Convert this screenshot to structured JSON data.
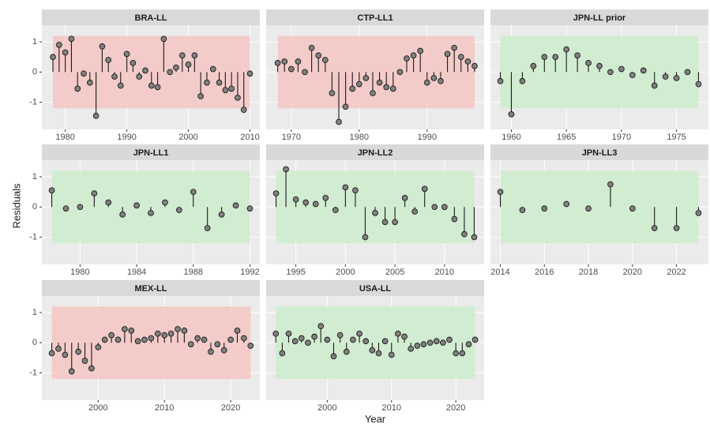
{
  "axis_titles": {
    "x": "Year",
    "y": "Residuals"
  },
  "chart_data": [
    {
      "type": "stem",
      "title": "BRA-LL",
      "band_color": "#f4c6c3",
      "color": "#808080",
      "x": [
        1978,
        1979,
        1980,
        1981,
        1982,
        1983,
        1984,
        1985,
        1986,
        1987,
        1988,
        1989,
        1990,
        1991,
        1992,
        1993,
        1994,
        1995,
        1996,
        1997,
        1998,
        1999,
        2000,
        2001,
        2002,
        2003,
        2004,
        2005,
        2006,
        2007,
        2008,
        2009,
        2010
      ],
      "values": [
        0.5,
        0.9,
        0.65,
        1.1,
        -0.55,
        -0.05,
        -0.35,
        -1.45,
        0.85,
        0.4,
        -0.15,
        -0.45,
        0.6,
        0.3,
        -0.15,
        0.05,
        -0.45,
        -0.5,
        1.1,
        0.0,
        0.15,
        0.55,
        0.25,
        0.55,
        -0.8,
        -0.35,
        0.1,
        -0.35,
        -0.6,
        -0.55,
        -0.85,
        -1.25,
        -0.05
      ],
      "band": [
        -1.2,
        1.2
      ],
      "xlim": [
        1976.2,
        2011.6
      ],
      "xticks": [
        1980,
        1990,
        2000,
        2010
      ],
      "ylim": [
        -1.9,
        1.55
      ],
      "yticks": [
        -1,
        0,
        1
      ]
    },
    {
      "type": "stem",
      "title": "CTP-LL1",
      "band_color": "#f4c6c3",
      "color": "#808080",
      "x": [
        1968,
        1969,
        1970,
        1971,
        1972,
        1973,
        1974,
        1975,
        1976,
        1977,
        1978,
        1979,
        1980,
        1981,
        1982,
        1983,
        1984,
        1985,
        1986,
        1987,
        1988,
        1989,
        1990,
        1991,
        1992,
        1993,
        1994,
        1995,
        1996,
        1997
      ],
      "values": [
        0.3,
        0.35,
        0.1,
        0.35,
        0.0,
        0.8,
        0.55,
        0.4,
        -0.7,
        -1.65,
        -1.15,
        -0.55,
        -0.4,
        -0.2,
        -0.7,
        -0.35,
        -0.5,
        -0.55,
        0.0,
        0.45,
        0.55,
        0.7,
        -0.35,
        -0.2,
        -0.3,
        0.6,
        0.8,
        0.5,
        0.35,
        0.2
      ],
      "band": [
        -1.2,
        1.2
      ],
      "xlim": [
        1966.3,
        1998.4
      ],
      "xticks": [
        1970,
        1980,
        1990
      ],
      "ylim": [
        -1.9,
        1.55
      ],
      "yticks": [
        -1,
        0,
        1
      ]
    },
    {
      "type": "stem",
      "title": "JPN-LL prior",
      "band_color": "#cdeccb",
      "color": "#808080",
      "x": [
        1959,
        1960,
        1961,
        1962,
        1963,
        1964,
        1965,
        1966,
        1967,
        1968,
        1969,
        1970,
        1971,
        1972,
        1973,
        1974,
        1975,
        1976,
        1977
      ],
      "values": [
        -0.3,
        -1.4,
        -0.3,
        0.2,
        0.5,
        0.5,
        0.75,
        0.55,
        0.3,
        0.2,
        0.0,
        0.1,
        -0.1,
        0.05,
        -0.45,
        -0.15,
        -0.2,
        0.0,
        -0.4
      ],
      "band": [
        -1.2,
        1.2
      ],
      "xlim": [
        1958.1,
        1977.9
      ],
      "xticks": [
        1960,
        1965,
        1970,
        1975
      ],
      "ylim": [
        -1.9,
        1.55
      ],
      "yticks": [
        -1,
        0,
        1
      ]
    },
    {
      "type": "stem",
      "title": "JPN-LL1",
      "band_color": "#cdeccb",
      "color": "#808080",
      "x": [
        1978,
        1979,
        1980,
        1981,
        1982,
        1983,
        1984,
        1985,
        1986,
        1987,
        1988,
        1989,
        1990,
        1991,
        1992
      ],
      "values": [
        0.55,
        -0.05,
        0.0,
        0.45,
        0.15,
        -0.25,
        0.05,
        -0.2,
        0.15,
        -0.1,
        0.5,
        -0.7,
        -0.25,
        0.05,
        -0.05
      ],
      "band": [
        -1.2,
        1.2
      ],
      "xlim": [
        1977.3,
        1992.7
      ],
      "xticks": [
        1980,
        1984,
        1988,
        1992
      ],
      "ylim": [
        -1.9,
        1.55
      ],
      "yticks": [
        -1,
        0,
        1
      ]
    },
    {
      "type": "stem",
      "title": "JPN-LL2",
      "band_color": "#cdeccb",
      "color": "#808080",
      "x": [
        1993,
        1994,
        1995,
        1996,
        1997,
        1998,
        1999,
        2000,
        2001,
        2002,
        2003,
        2004,
        2005,
        2006,
        2007,
        2008,
        2009,
        2010,
        2011,
        2012,
        2013
      ],
      "values": [
        0.45,
        1.25,
        0.25,
        0.15,
        0.1,
        0.3,
        -0.1,
        0.65,
        0.55,
        -1.0,
        -0.2,
        -0.5,
        -0.5,
        0.3,
        -0.15,
        0.6,
        0.0,
        0.0,
        -0.4,
        -0.9,
        -1.0
      ],
      "band": [
        -1.2,
        1.2
      ],
      "xlim": [
        1992.0,
        2014.0
      ],
      "xticks": [
        1995,
        2000,
        2005,
        2010
      ],
      "ylim": [
        -1.9,
        1.55
      ],
      "yticks": [
        -1,
        0,
        1
      ]
    },
    {
      "type": "stem",
      "title": "JPN-LL3",
      "band_color": "#cdeccb",
      "color": "#808080",
      "x": [
        2014,
        2015,
        2016,
        2017,
        2018,
        2019,
        2020,
        2021,
        2022,
        2023
      ],
      "values": [
        0.5,
        -0.1,
        -0.05,
        0.1,
        -0.05,
        0.75,
        -0.05,
        -0.7,
        -0.7,
        -0.2
      ],
      "band": [
        -1.2,
        1.2
      ],
      "xlim": [
        2013.55,
        2023.45
      ],
      "xticks": [
        2014,
        2016,
        2018,
        2020,
        2022
      ],
      "ylim": [
        -1.9,
        1.55
      ],
      "yticks": [
        -1,
        0,
        1
      ]
    },
    {
      "type": "stem",
      "title": "MEX-LL",
      "band_color": "#f4c6c3",
      "color": "#808080",
      "x": [
        1993,
        1994,
        1995,
        1996,
        1997,
        1998,
        1999,
        2000,
        2001,
        2002,
        2003,
        2004,
        2005,
        2006,
        2007,
        2008,
        2009,
        2010,
        2011,
        2012,
        2013,
        2014,
        2015,
        2016,
        2017,
        2018,
        2019,
        2020,
        2021,
        2022,
        2023
      ],
      "values": [
        -0.35,
        -0.2,
        -0.4,
        -0.95,
        -0.3,
        -0.6,
        -0.85,
        -0.15,
        0.1,
        0.25,
        0.1,
        0.45,
        0.4,
        0.05,
        0.1,
        0.15,
        0.3,
        0.25,
        0.3,
        0.45,
        0.4,
        -0.05,
        0.15,
        0.1,
        -0.3,
        -0.05,
        -0.25,
        0.1,
        0.4,
        0.15,
        -0.1
      ],
      "band": [
        -1.2,
        1.2
      ],
      "xlim": [
        1991.5,
        2024.4
      ],
      "xticks": [
        2000,
        2010,
        2020
      ],
      "ylim": [
        -1.9,
        1.55
      ],
      "yticks": [
        -1,
        0,
        1
      ]
    },
    {
      "type": "stem",
      "title": "USA-LL",
      "band_color": "#cdeccb",
      "color": "#808080",
      "x": [
        1992,
        1993,
        1994,
        1995,
        1996,
        1997,
        1998,
        1999,
        2000,
        2001,
        2002,
        2003,
        2004,
        2005,
        2006,
        2007,
        2008,
        2009,
        2010,
        2011,
        2012,
        2013,
        2014,
        2015,
        2016,
        2017,
        2018,
        2019,
        2020,
        2021,
        2022,
        2023
      ],
      "values": [
        0.3,
        -0.35,
        0.3,
        0.05,
        0.15,
        0.0,
        0.2,
        0.55,
        0.1,
        -0.45,
        0.25,
        -0.3,
        0.1,
        0.3,
        0.05,
        -0.25,
        -0.35,
        0.05,
        -0.4,
        0.3,
        0.2,
        -0.2,
        -0.1,
        -0.05,
        0.0,
        0.05,
        0.0,
        0.1,
        -0.35,
        -0.35,
        -0.05,
        0.1
      ],
      "band": [
        -1.2,
        1.2
      ],
      "xlim": [
        1990.5,
        2024.4
      ],
      "xticks": [
        2000,
        2010,
        2020
      ],
      "ylim": [
        -1.9,
        1.55
      ],
      "yticks": [
        -1,
        0,
        1
      ]
    }
  ]
}
